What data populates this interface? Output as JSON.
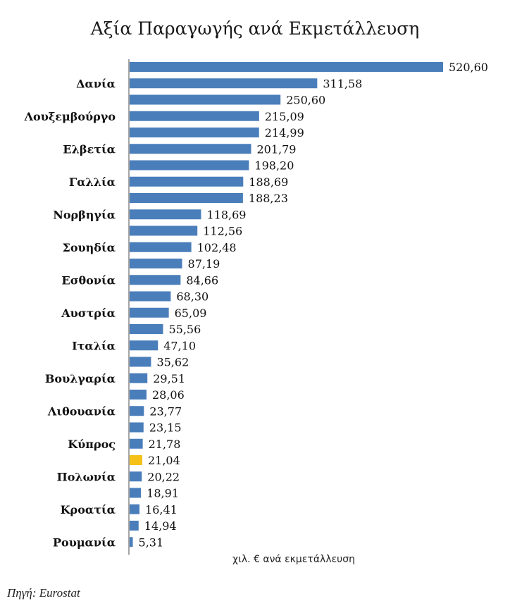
{
  "chart_data": {
    "type": "bar",
    "orientation": "horizontal",
    "title": "Αξία Παραγωγής ανά Εκμετάλλευση",
    "unit_label": "χιλ. € ανά εκμετάλλευση",
    "source": "Πηγή: Eurostat",
    "categories": [
      "",
      "Δανία",
      "",
      "Λουξεμβούργο",
      "",
      "Ελβετία",
      "",
      "Γαλλία",
      "",
      "Νορβηγία",
      "",
      "Σουηδία",
      "",
      "Εσθονία",
      "",
      "Αυστρία",
      "",
      "Ιταλία",
      "",
      "Βουλγαρία",
      "",
      "Λιθουανία",
      "",
      "Κύπρος",
      "",
      "Πολωνία",
      "",
      "Κροατία",
      "",
      "Ρουμανία"
    ],
    "values": [
      520.6,
      311.58,
      250.6,
      215.09,
      214.99,
      201.79,
      198.2,
      188.69,
      188.23,
      118.69,
      112.56,
      102.48,
      87.19,
      84.66,
      68.3,
      65.09,
      55.56,
      47.1,
      35.62,
      29.51,
      28.06,
      23.77,
      23.15,
      21.78,
      21.04,
      20.22,
      18.91,
      16.41,
      14.94,
      5.31
    ],
    "value_labels": [
      "520,60",
      "311,58",
      "250,60",
      "215,09",
      "214,99",
      "201,79",
      "198,20",
      "188,69",
      "188,23",
      "118,69",
      "112,56",
      "102,48",
      "87,19",
      "84,66",
      "68,30",
      "65,09",
      "55,56",
      "47,10",
      "35,62",
      "29,51",
      "28,06",
      "23,77",
      "23,15",
      "21,78",
      "21,04",
      "20,22",
      "18,91",
      "16,41",
      "14,94",
      "5,31"
    ],
    "highlight_index": 24,
    "colors": {
      "bar": "#4a7ebb",
      "highlight": "#f5c018",
      "axis": "#888888"
    },
    "xlim": [
      0,
      520.6
    ],
    "grid": false,
    "legend": "none"
  }
}
